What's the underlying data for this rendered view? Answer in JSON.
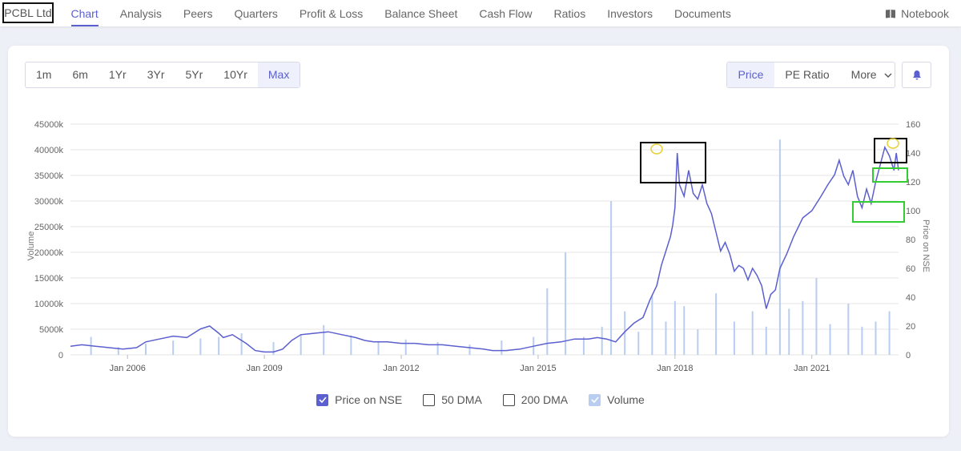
{
  "company": "PCBL Ltd",
  "tabs": [
    "Chart",
    "Analysis",
    "Peers",
    "Quarters",
    "Profit & Loss",
    "Balance Sheet",
    "Cash Flow",
    "Ratios",
    "Investors",
    "Documents"
  ],
  "notebook": "Notebook",
  "ranges": [
    "1m",
    "6m",
    "1Yr",
    "3Yr",
    "5Yr",
    "10Yr",
    "Max"
  ],
  "active_range": "Max",
  "metric_buttons": {
    "price": "Price",
    "pe": "PE Ratio",
    "more": "More"
  },
  "legend": {
    "price": "Price on NSE",
    "dma50": "50 DMA",
    "dma200": "200 DMA",
    "volume": "Volume"
  },
  "colors": {
    "price": "#5b5fcf",
    "volume": "#b9cdf0",
    "accent": "#5b5fcf",
    "highlight_black": "#000000",
    "highlight_green": "#33cc33",
    "highlight_yellow": "#e8d030"
  },
  "chart_data": {
    "type": "line",
    "xlabel": "",
    "ylabel": "Volume",
    "y2label": "Price on NSE",
    "x_ticks": [
      "Jan 2006",
      "Jan 2009",
      "Jan 2012",
      "Jan 2015",
      "Jan 2018",
      "Jan 2021"
    ],
    "volume_ticks": [
      "0",
      "5000k",
      "10000k",
      "15000k",
      "20000k",
      "25000k",
      "30000k",
      "35000k",
      "40000k",
      "45000k"
    ],
    "price_ticks": [
      "0",
      "20",
      "40",
      "60",
      "80",
      "100",
      "120",
      "140",
      "160"
    ],
    "ylim_volume": [
      0,
      45000
    ],
    "ylim_price": [
      0,
      160
    ],
    "xlim": [
      2004.75,
      2022.9
    ],
    "grid": true,
    "series": [
      {
        "name": "Price on NSE",
        "axis": "right",
        "x": [
          2004.75,
          2005.0,
          2005.3,
          2005.6,
          2005.9,
          2006.2,
          2006.4,
          2006.7,
          2007.0,
          2007.3,
          2007.6,
          2007.8,
          2008.0,
          2008.1,
          2008.3,
          2008.5,
          2008.6,
          2008.8,
          2009.0,
          2009.2,
          2009.4,
          2009.6,
          2009.8,
          2010.1,
          2010.4,
          2010.7,
          2011.0,
          2011.2,
          2011.4,
          2011.7,
          2012.0,
          2012.3,
          2012.6,
          2012.9,
          2013.2,
          2013.5,
          2013.8,
          2014.0,
          2014.3,
          2014.6,
          2014.9,
          2015.2,
          2015.5,
          2015.8,
          2016.1,
          2016.3,
          2016.5,
          2016.7,
          2016.9,
          2017.1,
          2017.3,
          2017.45,
          2017.6,
          2017.7,
          2017.8,
          2017.9,
          2017.95,
          2018.0,
          2018.05,
          2018.1,
          2018.2,
          2018.3,
          2018.4,
          2018.5,
          2018.6,
          2018.7,
          2018.8,
          2018.9,
          2019.0,
          2019.1,
          2019.2,
          2019.3,
          2019.4,
          2019.5,
          2019.6,
          2019.7,
          2019.8,
          2019.9,
          2020.0,
          2020.1,
          2020.2,
          2020.3,
          2020.45,
          2020.6,
          2020.8,
          2021.0,
          2021.2,
          2021.35,
          2021.5,
          2021.6,
          2021.7,
          2021.8,
          2021.9,
          2022.0,
          2022.1,
          2022.2,
          2022.3,
          2022.4,
          2022.5,
          2022.6,
          2022.7,
          2022.8,
          2022.85,
          2022.9
        ],
        "values": [
          6,
          7,
          6,
          5,
          4,
          5,
          9,
          11,
          13,
          12,
          18,
          20,
          15,
          12,
          14,
          10,
          8,
          3,
          2,
          2,
          4,
          10,
          14,
          15,
          16,
          14,
          12,
          10,
          9,
          9,
          8,
          8,
          7,
          7,
          6,
          5,
          4,
          3,
          3,
          4,
          6,
          8,
          9,
          11,
          11,
          12,
          11,
          9,
          16,
          22,
          26,
          38,
          48,
          62,
          72,
          82,
          90,
          102,
          140,
          118,
          110,
          128,
          112,
          108,
          118,
          105,
          98,
          85,
          72,
          78,
          70,
          58,
          62,
          60,
          52,
          60,
          55,
          48,
          32,
          42,
          45,
          60,
          70,
          82,
          95,
          100,
          110,
          118,
          125,
          135,
          124,
          118,
          128,
          110,
          102,
          115,
          105,
          120,
          132,
          144,
          138,
          128,
          140,
          128
        ]
      },
      {
        "name": "Volume",
        "axis": "left",
        "type": "bar",
        "x": [
          2005.2,
          2005.8,
          2006.4,
          2007.0,
          2007.6,
          2008.0,
          2008.5,
          2009.2,
          2009.8,
          2010.3,
          2010.9,
          2011.5,
          2012.1,
          2012.8,
          2013.5,
          2014.2,
          2014.9,
          2015.2,
          2015.6,
          2016.0,
          2016.4,
          2016.6,
          2016.9,
          2017.2,
          2017.5,
          2017.8,
          2018.0,
          2018.2,
          2018.5,
          2018.9,
          2019.3,
          2019.7,
          2020.0,
          2020.3,
          2020.5,
          2020.8,
          2021.1,
          2021.4,
          2021.8,
          2022.1,
          2022.4,
          2022.7
        ],
        "values": [
          3500,
          1500,
          2200,
          2800,
          3200,
          3500,
          4200,
          2500,
          4000,
          5800,
          3800,
          2500,
          3000,
          2500,
          2000,
          2800,
          3500,
          13000,
          20000,
          3500,
          5500,
          30000,
          8500,
          4500,
          11500,
          6500,
          10500,
          9500,
          5000,
          12000,
          6500,
          8500,
          5500,
          42000,
          9000,
          10500,
          15000,
          6000,
          10000,
          5500,
          6500,
          8500
        ]
      }
    ]
  }
}
